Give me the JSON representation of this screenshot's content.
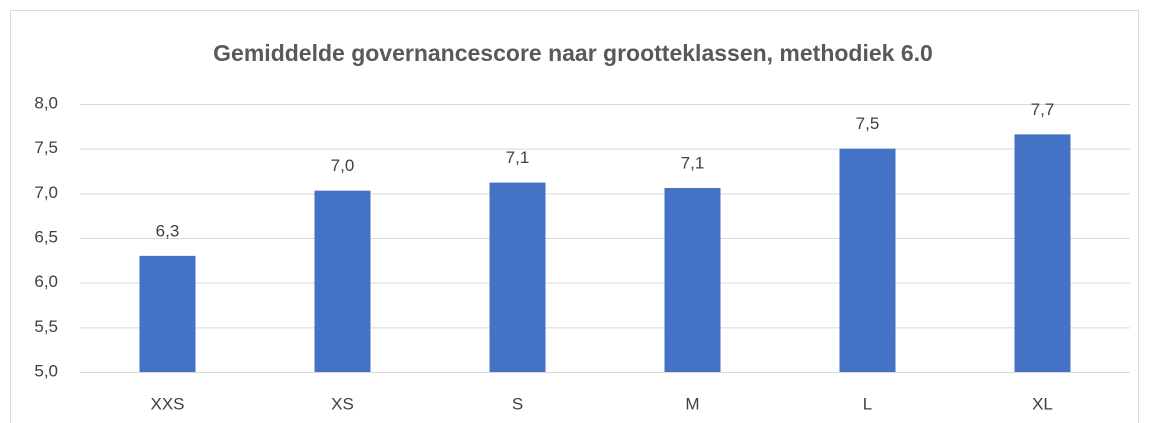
{
  "chart_data": {
    "type": "bar",
    "title": "Gemiddelde governancescore naar grootteklassen, methodiek 6.0",
    "categories": [
      "XXS",
      "XS",
      "S",
      "M",
      "L",
      "XL"
    ],
    "values": [
      6.3,
      7.03,
      7.12,
      7.06,
      7.5,
      7.66
    ],
    "value_labels": [
      "6,3",
      "7,0",
      "7,1",
      "7,1",
      "7,5",
      "7,7"
    ],
    "color": "#4472c4",
    "ylim": [
      5,
      8
    ],
    "yticks": [
      {
        "value": 5,
        "label": "5,0"
      },
      {
        "value": 5.5,
        "label": "5,5"
      },
      {
        "value": 6,
        "label": "6,0"
      },
      {
        "value": 6.5,
        "label": "6,5"
      },
      {
        "value": 7,
        "label": "7,0"
      },
      {
        "value": 7.5,
        "label": "7,5"
      },
      {
        "value": 8,
        "label": "8,0"
      }
    ],
    "grid": true
  }
}
